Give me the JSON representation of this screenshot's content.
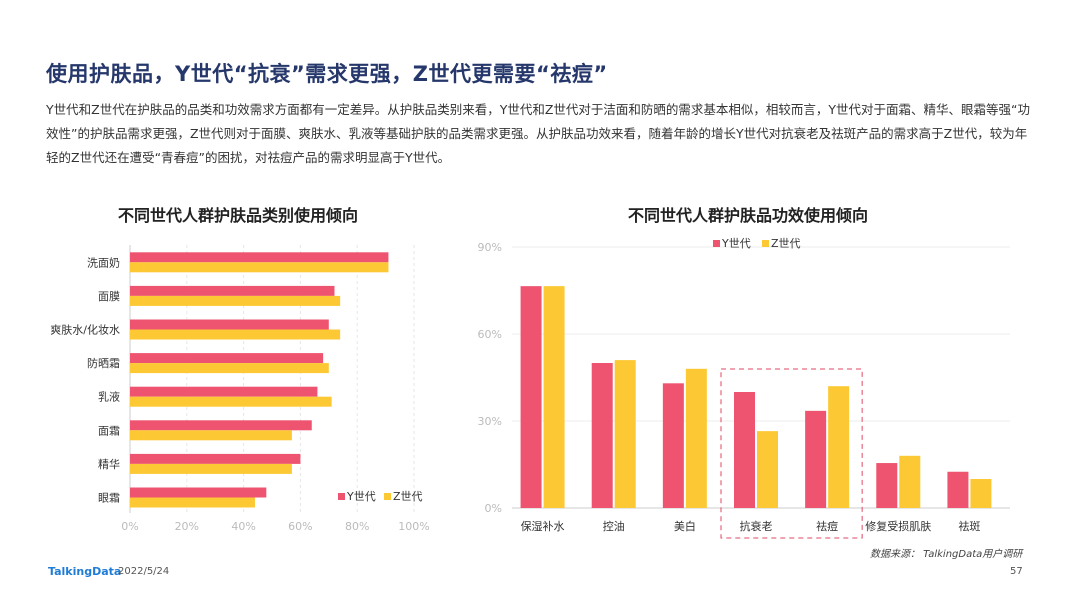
{
  "page": {
    "title": "使用护肤品，Y世代“抗衰”需求更强，Z世代更需要“祛痘”",
    "description": "Y世代和Z世代在护肤品的品类和功效需求方面都有一定差异。从护肤品类别来看，Y世代和Z世代对于洁面和防晒的需求基本相似，相较而言，Y世代对于面霜、精华、眼霜等强“功效性”的护肤品需求更强，Z世代则对于面膜、爽肤水、乳液等基础护肤的品类需求更强。从护肤品功效来看，随着年龄的增长Y世代对抗衰老及祛斑产品的需求高于Z世代，较为年轻的Z世代还在遭受“青春痘”的困扰，对祛痘产品的需求明显高于Y世代。",
    "source": "数据来源： TalkingData用户调研",
    "logo": "TalkingData",
    "date": "2022/5/24",
    "page_number": "57"
  },
  "colors": {
    "y": "#ee5470",
    "z": "#fcc934"
  },
  "chart_data": [
    {
      "type": "bar",
      "orientation": "horizontal",
      "title": "不同世代人群护肤品类别使用倾向",
      "categories": [
        "洗面奶",
        "面膜",
        "爽肤水/化妆水",
        "防晒霜",
        "乳液",
        "面霜",
        "精华",
        "眼霜"
      ],
      "series": [
        {
          "name": "Y世代",
          "values": [
            91,
            72,
            70,
            68,
            66,
            64,
            60,
            48
          ]
        },
        {
          "name": "Z世代",
          "values": [
            91,
            74,
            74,
            70,
            71,
            57,
            57,
            44
          ]
        }
      ],
      "xlim": [
        0,
        100
      ],
      "xticks": [
        "0%",
        "20%",
        "40%",
        "60%",
        "80%",
        "100%"
      ],
      "legend": "bottom-right"
    },
    {
      "type": "bar",
      "orientation": "vertical",
      "title": "不同世代人群护肤品功效使用倾向",
      "categories": [
        "保湿补水",
        "控油",
        "美白",
        "抗衰老",
        "祛痘",
        "修复受损肌肤",
        "祛斑"
      ],
      "series": [
        {
          "name": "Y世代",
          "values": [
            76.5,
            50,
            43,
            40,
            33.5,
            15.5,
            12.5
          ]
        },
        {
          "name": "Z世代",
          "values": [
            76.5,
            51,
            48,
            26.5,
            42,
            18,
            10
          ]
        }
      ],
      "ylim": [
        0,
        90
      ],
      "yticks": [
        "0%",
        "30%",
        "60%",
        "90%"
      ],
      "highlight": [
        "抗衰老",
        "祛痘"
      ],
      "legend": "top"
    }
  ]
}
